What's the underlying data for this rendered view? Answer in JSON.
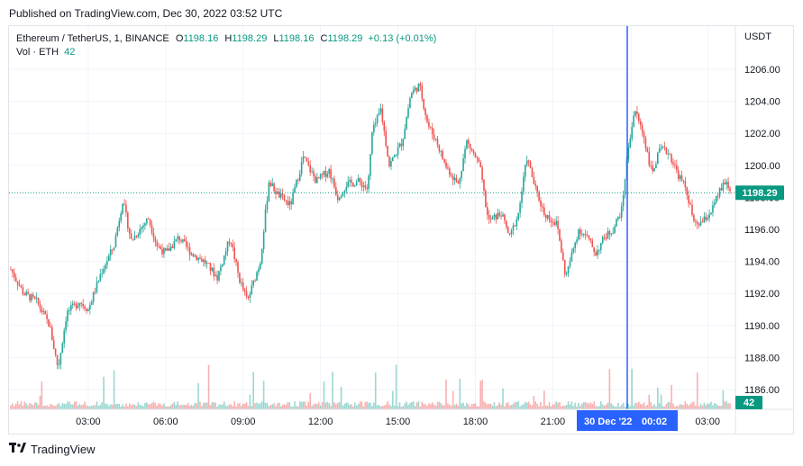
{
  "published": "Published on TradingView.com, Dec 30, 2022 03:52 UTC",
  "legend": {
    "symbol": "Ethereum / TetherUS, 1, BINANCE",
    "open_label": "O",
    "open": "1198.16",
    "high_label": "H",
    "high": "1198.29",
    "low_label": "L",
    "low": "1198.16",
    "close_label": "C",
    "close": "1198.29",
    "change": "+0.13 (+0.01%)",
    "vol_label": "Vol · ETH",
    "vol_value": "42"
  },
  "currency": "USDT",
  "brand": "TradingView",
  "icons": {
    "brand_logo": "tradingview-logo-icon"
  },
  "colors": {
    "up": "#26a69a",
    "down": "#ef5350",
    "crosshair": "#2962ff",
    "price_tag": "#089981"
  },
  "chart_data": {
    "type": "candlestick",
    "title": "Ethereum / TetherUS, 1, BINANCE",
    "ylabel": "USDT",
    "ylim": [
      1185,
      1207
    ],
    "y_ticks": [
      "1206.00",
      "1204.00",
      "1202.00",
      "1200.00",
      "1198.00",
      "1196.00",
      "1194.00",
      "1192.00",
      "1190.00",
      "1188.00",
      "1186.00"
    ],
    "x_ticks": [
      "03:00",
      "06:00",
      "09:00",
      "12:00",
      "15:00",
      "18:00",
      "21:00",
      "00:00",
      "03:00"
    ],
    "last_price": "1198.29",
    "last_volume": "42",
    "crosshair_time": "30 Dec '22",
    "crosshair_clock": "00:02",
    "price_path": [
      [
        "00:00",
        1193.5
      ],
      [
        "00:30",
        1192.0
      ],
      [
        "01:00",
        1191.5
      ],
      [
        "01:30",
        1190.0
      ],
      [
        "01:50",
        1187.3
      ],
      [
        "02:10",
        1190.8
      ],
      [
        "02:40",
        1191.5
      ],
      [
        "03:00",
        1191.0
      ],
      [
        "03:30",
        1193.3
      ],
      [
        "04:00",
        1195.0
      ],
      [
        "04:20",
        1197.8
      ],
      [
        "04:40",
        1195.3
      ],
      [
        "05:00",
        1196.0
      ],
      [
        "05:20",
        1196.7
      ],
      [
        "05:40",
        1195.0
      ],
      [
        "06:00",
        1194.5
      ],
      [
        "06:30",
        1195.5
      ],
      [
        "07:00",
        1194.5
      ],
      [
        "07:30",
        1194.0
      ],
      [
        "08:00",
        1193.0
      ],
      [
        "08:30",
        1195.5
      ],
      [
        "08:50",
        1193.0
      ],
      [
        "09:10",
        1191.5
      ],
      [
        "09:40",
        1194.0
      ],
      [
        "10:00",
        1199.0
      ],
      [
        "10:20",
        1198.2
      ],
      [
        "10:50",
        1197.5
      ],
      [
        "11:20",
        1200.5
      ],
      [
        "11:50",
        1199.0
      ],
      [
        "12:20",
        1199.7
      ],
      [
        "12:40",
        1198.0
      ],
      [
        "13:00",
        1198.8
      ],
      [
        "13:30",
        1199.0
      ],
      [
        "13:50",
        1198.5
      ],
      [
        "14:00",
        1202.0
      ],
      [
        "14:20",
        1203.5
      ],
      [
        "14:40",
        1200.0
      ],
      [
        "15:10",
        1201.5
      ],
      [
        "15:30",
        1204.5
      ],
      [
        "15:50",
        1205.0
      ],
      [
        "16:10",
        1202.5
      ],
      [
        "16:30",
        1201.5
      ],
      [
        "16:50",
        1200.0
      ],
      [
        "17:20",
        1198.8
      ],
      [
        "17:40",
        1201.5
      ],
      [
        "18:10",
        1200.0
      ],
      [
        "18:30",
        1196.5
      ],
      [
        "19:00",
        1197.0
      ],
      [
        "19:20",
        1195.5
      ],
      [
        "19:40",
        1197.0
      ],
      [
        "20:00",
        1200.5
      ],
      [
        "20:20",
        1198.5
      ],
      [
        "20:40",
        1197.0
      ],
      [
        "21:10",
        1196.3
      ],
      [
        "21:30",
        1193.0
      ],
      [
        "22:00",
        1196.0
      ],
      [
        "22:20",
        1195.5
      ],
      [
        "22:40",
        1194.5
      ],
      [
        "23:00",
        1195.5
      ],
      [
        "23:20",
        1196.0
      ],
      [
        "23:40",
        1197.2
      ],
      [
        "23:55",
        1201.0
      ],
      [
        "00:10",
        1203.5
      ],
      [
        "00:30",
        1202.0
      ],
      [
        "00:50",
        1199.5
      ],
      [
        "01:10",
        1201.0
      ],
      [
        "01:30",
        1200.8
      ],
      [
        "01:50",
        1199.5
      ],
      [
        "02:10",
        1198.5
      ],
      [
        "02:30",
        1196.2
      ],
      [
        "02:50",
        1196.5
      ],
      [
        "03:10",
        1197.2
      ],
      [
        "03:30",
        1198.5
      ],
      [
        "03:45",
        1199.0
      ],
      [
        "03:52",
        1198.29
      ]
    ]
  }
}
